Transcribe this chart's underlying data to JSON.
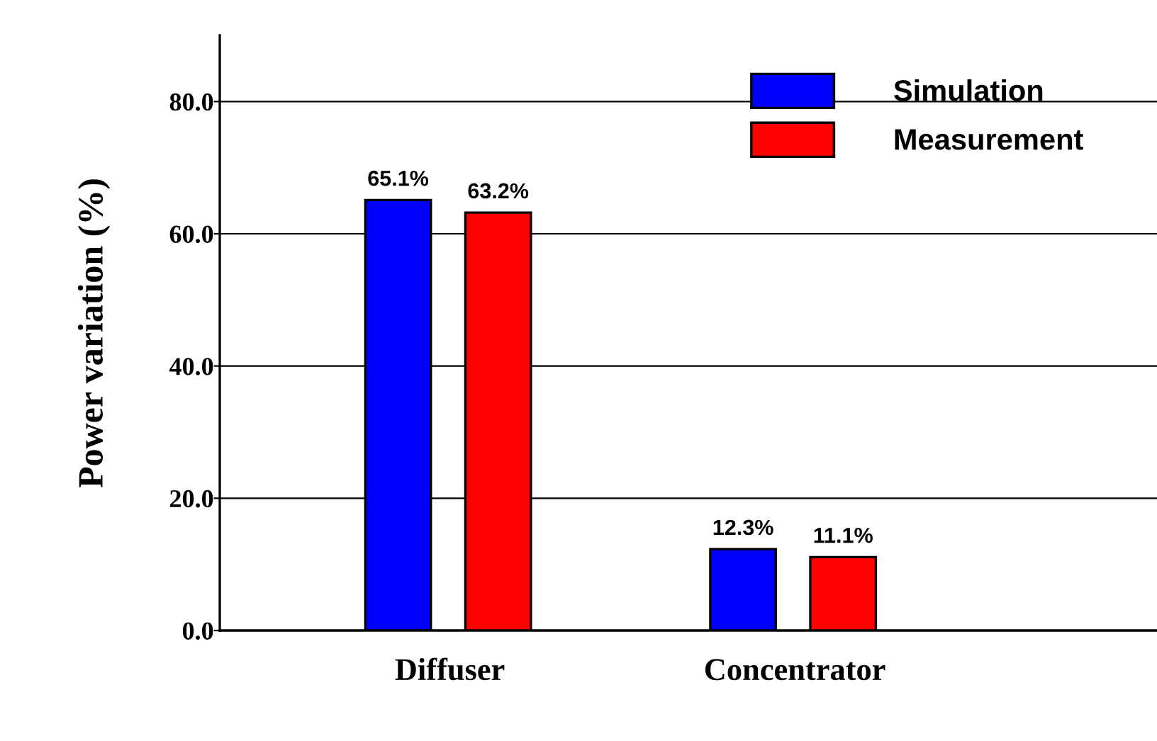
{
  "chart_data": {
    "type": "bar",
    "ylabel": "Power variation (%)",
    "categories": [
      "Diffuser",
      "Concentrator"
    ],
    "series": [
      {
        "name": "Simulation",
        "color": "#0000ff",
        "values": [
          65.1,
          12.3
        ],
        "value_labels": [
          "65.1%",
          "12.3%"
        ]
      },
      {
        "name": "Measurement",
        "color": "#ff0000",
        "values": [
          63.2,
          11.1
        ],
        "value_labels": [
          "63.2%",
          "11.1%"
        ]
      }
    ],
    "ylim": [
      0,
      90
    ],
    "yticks": [
      {
        "value": 0,
        "label": "0.0"
      },
      {
        "value": 20,
        "label": "20.0"
      },
      {
        "value": 40,
        "label": "40.0"
      },
      {
        "value": 60,
        "label": "60.0"
      },
      {
        "value": 80,
        "label": "80.0"
      }
    ],
    "grid": "y",
    "legend": "top right"
  }
}
